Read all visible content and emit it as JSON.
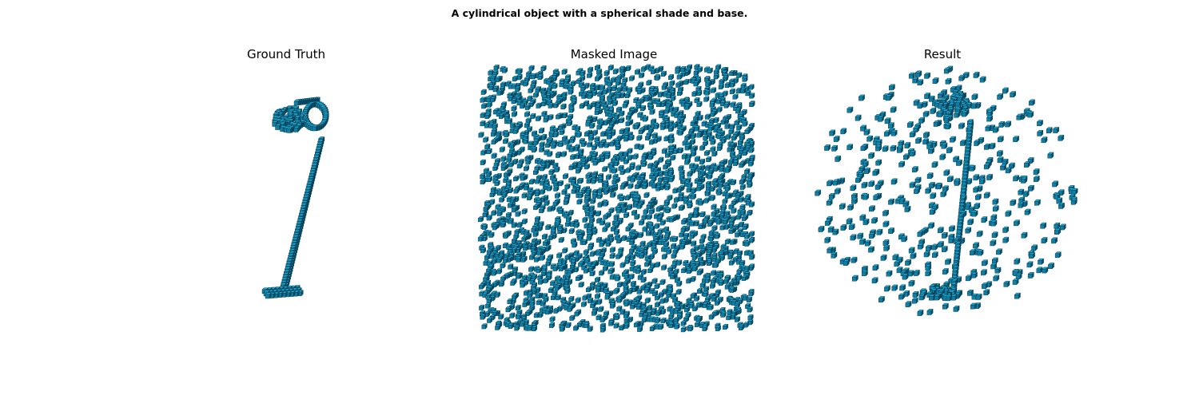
{
  "figure": {
    "title": "A cylindrical object with a spherical shade and base."
  },
  "panels": [
    {
      "title": "Ground Truth"
    },
    {
      "title": "Masked Image"
    },
    {
      "title": "Result"
    }
  ],
  "colors": {
    "voxel_top": "#19a8d4",
    "voxel_face": "#0f7fa6",
    "voxel_side": "#0a4f69",
    "voxel_edge": "#06303f"
  }
}
